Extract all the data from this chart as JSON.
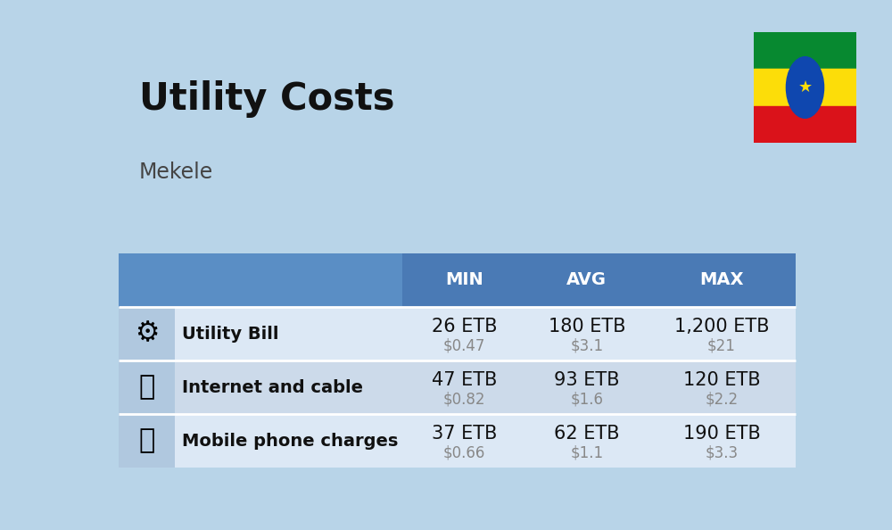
{
  "title": "Utility Costs",
  "subtitle": "Mekele",
  "background_color": "#b8d4e8",
  "header_color": "#4a7ab5",
  "header_text_color": "#ffffff",
  "header_left_color": "#5a8ec5",
  "row_colors": [
    "#dce8f5",
    "#ccdaea"
  ],
  "icon_col_color": "#b0c8df",
  "rows": [
    {
      "label": "Utility Bill",
      "icon": "utility",
      "min_etb": "26 ETB",
      "min_usd": "$0.47",
      "avg_etb": "180 ETB",
      "avg_usd": "$3.1",
      "max_etb": "1,200 ETB",
      "max_usd": "$21"
    },
    {
      "label": "Internet and cable",
      "icon": "internet",
      "min_etb": "47 ETB",
      "min_usd": "$0.82",
      "avg_etb": "93 ETB",
      "avg_usd": "$1.6",
      "max_etb": "120 ETB",
      "max_usd": "$2.2"
    },
    {
      "label": "Mobile phone charges",
      "icon": "mobile",
      "min_etb": "37 ETB",
      "min_usd": "$0.66",
      "avg_etb": "62 ETB",
      "avg_usd": "$1.1",
      "max_etb": "190 ETB",
      "max_usd": "$3.3"
    }
  ],
  "col_headers": [
    "MIN",
    "AVG",
    "MAX"
  ],
  "title_fontsize": 30,
  "subtitle_fontsize": 17,
  "header_fontsize": 14,
  "label_fontsize": 14,
  "value_fontsize": 15,
  "usd_fontsize": 12,
  "title_color": "#111111",
  "subtitle_color": "#444444",
  "label_color": "#111111",
  "value_color": "#111111",
  "usd_color": "#888888",
  "divider_color": "#ffffff",
  "flag_green": "#078930",
  "flag_yellow": "#FCDD09",
  "flag_red": "#DA121A",
  "flag_blue": "#0F47AF"
}
